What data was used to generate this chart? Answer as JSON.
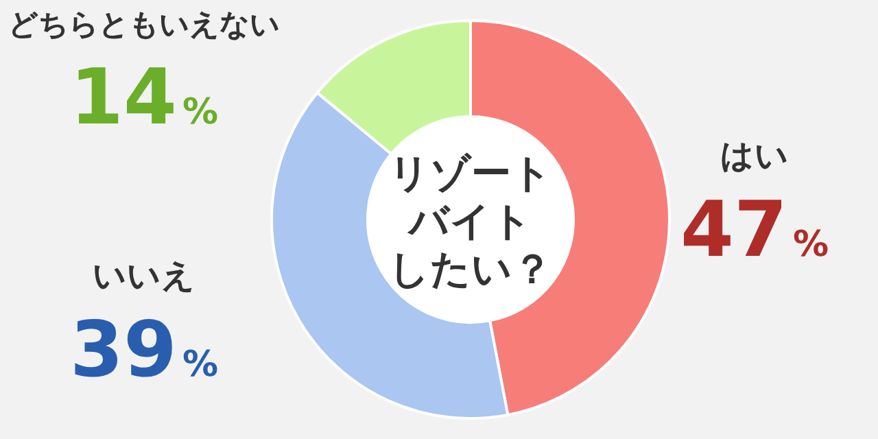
{
  "chart_data": {
    "type": "donut",
    "title": "リゾートバイトしたい？",
    "categories": [
      "はい",
      "いいえ",
      "どちらともいえない"
    ],
    "values": [
      47,
      39,
      14
    ],
    "colors": [
      "#f77d79",
      "#aac6f1",
      "#c8f59c"
    ],
    "value_labels": [
      "47%",
      "39%",
      "14%"
    ]
  }
}
